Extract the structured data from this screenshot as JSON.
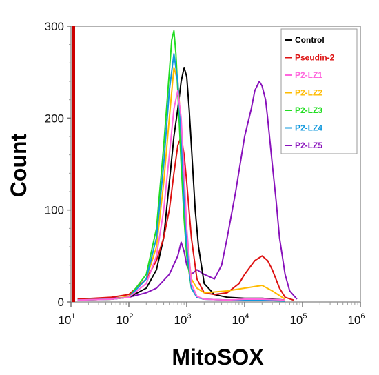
{
  "chart_data": {
    "type": "line",
    "title": "",
    "xlabel": "MitoSOX",
    "ylabel": "Count",
    "x_scale": "log10",
    "xlim": [
      10,
      1000000
    ],
    "ylim": [
      0,
      300
    ],
    "grid": false,
    "legend_position": "top-right",
    "y_ticks": [
      {
        "value": 0,
        "label": "0"
      },
      {
        "value": 100,
        "label": "100"
      },
      {
        "value": 200,
        "label": "200"
      },
      {
        "value": 300,
        "label": "300"
      }
    ],
    "x_ticks": [
      {
        "value": 10,
        "base": "10",
        "exp": "1"
      },
      {
        "value": 100,
        "base": "10",
        "exp": "2"
      },
      {
        "value": 1000,
        "base": "10",
        "exp": "3"
      },
      {
        "value": 10000,
        "base": "10",
        "exp": "4"
      },
      {
        "value": 100000,
        "base": "10",
        "exp": "5"
      },
      {
        "value": 1000000,
        "base": "10",
        "exp": "6"
      }
    ],
    "series": [
      {
        "name": "Control",
        "color": "#000000",
        "x": [
          13,
          50,
          100,
          200,
          300,
          400,
          500,
          600,
          700,
          800,
          900,
          1000,
          1100,
          1200,
          1400,
          1600,
          2000,
          3000,
          5000,
          10000,
          20000,
          30000,
          50000
        ],
        "y": [
          2,
          3,
          5,
          15,
          35,
          70,
          130,
          180,
          210,
          240,
          255,
          245,
          210,
          170,
          100,
          60,
          20,
          8,
          5,
          4,
          4,
          3,
          2
        ]
      },
      {
        "name": "Pseudin-2",
        "color": "#dd1111",
        "x": [
          13,
          50,
          100,
          200,
          300,
          400,
          500,
          600,
          700,
          800,
          900,
          1000,
          1200,
          1500,
          2000,
          3000,
          5000,
          8000,
          10000,
          15000,
          20000,
          25000,
          30000,
          40000,
          50000,
          70000
        ],
        "y": [
          3,
          5,
          8,
          25,
          45,
          70,
          100,
          140,
          170,
          180,
          160,
          130,
          70,
          25,
          10,
          8,
          10,
          20,
          30,
          45,
          50,
          45,
          35,
          15,
          5,
          2
        ]
      },
      {
        "name": "P2-LZ1",
        "color": "#ff66dd",
        "x": [
          13,
          50,
          100,
          200,
          300,
          400,
          500,
          600,
          700,
          800,
          900,
          1000,
          1200,
          1500,
          2000,
          5000,
          10000,
          20000,
          50000
        ],
        "y": [
          2,
          3,
          5,
          20,
          50,
          100,
          160,
          210,
          230,
          200,
          140,
          80,
          20,
          6,
          3,
          2,
          3,
          3,
          2
        ]
      },
      {
        "name": "P2-LZ2",
        "color": "#ffbb00",
        "x": [
          13,
          50,
          100,
          200,
          300,
          400,
          500,
          600,
          700,
          800,
          900,
          1000,
          1200,
          1500,
          2000,
          5000,
          10000,
          20000,
          30000,
          50000
        ],
        "y": [
          2,
          3,
          6,
          25,
          60,
          130,
          200,
          255,
          240,
          190,
          130,
          70,
          25,
          15,
          10,
          12,
          15,
          18,
          12,
          3
        ]
      },
      {
        "name": "P2-LZ3",
        "color": "#22dd22",
        "x": [
          13,
          50,
          100,
          200,
          300,
          400,
          500,
          550,
          600,
          650,
          700,
          800,
          900,
          1000,
          1200,
          1500,
          2000,
          5000,
          20000,
          50000
        ],
        "y": [
          2,
          3,
          5,
          30,
          80,
          170,
          250,
          285,
          295,
          270,
          230,
          150,
          90,
          50,
          15,
          5,
          3,
          2,
          2,
          1
        ]
      },
      {
        "name": "P2-LZ4",
        "color": "#1199dd",
        "x": [
          13,
          50,
          100,
          200,
          300,
          400,
          500,
          600,
          700,
          800,
          900,
          1000,
          1200,
          1500,
          2000,
          5000,
          20000,
          50000
        ],
        "y": [
          2,
          3,
          5,
          25,
          70,
          150,
          230,
          270,
          240,
          180,
          110,
          60,
          15,
          5,
          3,
          2,
          2,
          1
        ]
      },
      {
        "name": "P2-LZ5",
        "color": "#8811bb",
        "x": [
          13,
          100,
          200,
          300,
          500,
          700,
          800,
          900,
          1000,
          1200,
          1500,
          2000,
          3000,
          4000,
          5000,
          7000,
          10000,
          13000,
          15000,
          18000,
          20000,
          23000,
          25000,
          30000,
          35000,
          40000,
          50000,
          60000,
          80000
        ],
        "y": [
          2,
          5,
          10,
          15,
          30,
          50,
          65,
          55,
          40,
          30,
          35,
          30,
          25,
          40,
          70,
          120,
          180,
          210,
          230,
          240,
          235,
          220,
          200,
          150,
          110,
          70,
          30,
          12,
          3
        ]
      }
    ]
  }
}
